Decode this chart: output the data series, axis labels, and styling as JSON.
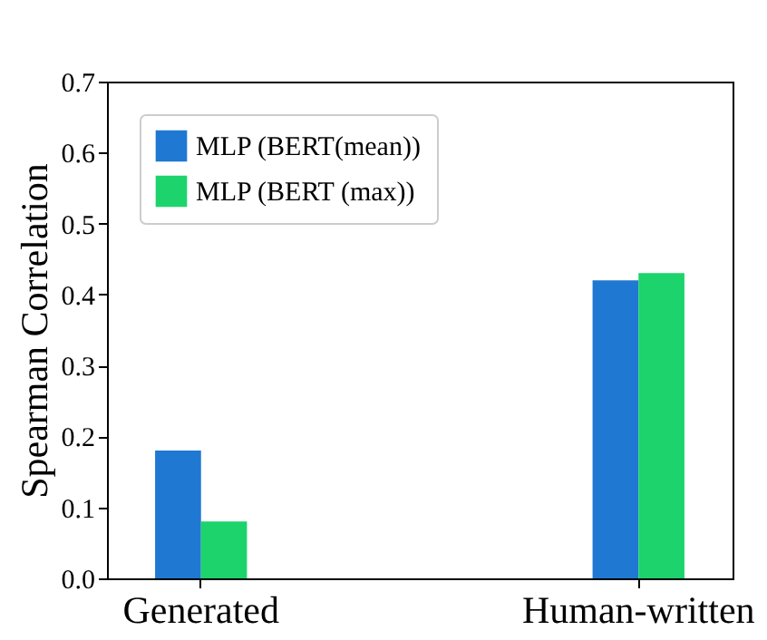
{
  "chart_data": {
    "type": "bar",
    "categories": [
      "Generated",
      "Human-written"
    ],
    "ylabel": "Spearman Correlation",
    "ylim": [
      0,
      0.7
    ],
    "yticks": [
      {
        "value": 0,
        "label": "0.0"
      },
      0.1,
      0.2,
      0.3,
      0.4,
      0.5,
      0.6,
      0.7
    ],
    "legend": "top left",
    "grid": false,
    "series": [
      {
        "name": "MLP (BERT(mean))",
        "color": "#1f78d2",
        "values": [
          0.18,
          0.42
        ]
      },
      {
        "name": "MLP (BERT (max))",
        "color": "#1dd36b",
        "values": [
          0.08,
          0.43
        ]
      }
    ]
  }
}
